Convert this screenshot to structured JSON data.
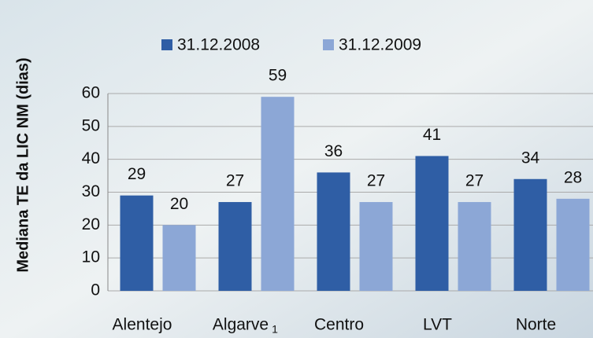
{
  "chart_data": {
    "type": "bar",
    "y_axis_label": "Mediana TE da LIC NM (dias)",
    "categories": [
      "Alentejo",
      "Algarve",
      "Centro",
      "LVT",
      "Norte"
    ],
    "category_footnote": {
      "index": 1,
      "label": "1"
    },
    "series": [
      {
        "name": "31.12.2008",
        "color": "#2f5ea5",
        "values": [
          29,
          27,
          36,
          41,
          34
        ]
      },
      {
        "name": "31.12.2009",
        "color": "#8ca7d6",
        "values": [
          20,
          59,
          27,
          27,
          28
        ]
      }
    ],
    "ylim": [
      0,
      60
    ],
    "yticks": [
      0,
      10,
      20,
      30,
      40,
      50,
      60
    ],
    "grid": true,
    "legend": "top"
  }
}
